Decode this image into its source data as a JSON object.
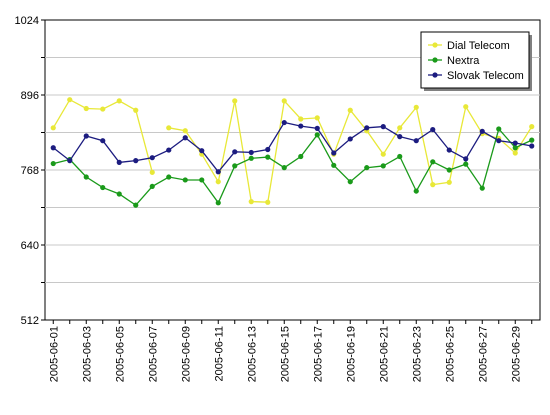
{
  "chart_data": {
    "type": "line",
    "title": "",
    "xlabel": "",
    "ylabel": "",
    "ylim": [
      512,
      1024
    ],
    "yticks": [
      512,
      640,
      768,
      896,
      1024
    ],
    "grid": true,
    "legend_position": "top-right",
    "x": [
      "2005-06-01",
      "2005-06-02",
      "2005-06-03",
      "2005-06-04",
      "2005-06-05",
      "2005-06-06",
      "2005-06-07",
      "2005-06-08",
      "2005-06-09",
      "2005-06-10",
      "2005-06-11",
      "2005-06-12",
      "2005-06-13",
      "2005-06-14",
      "2005-06-15",
      "2005-06-16",
      "2005-06-17",
      "2005-06-18",
      "2005-06-19",
      "2005-06-20",
      "2005-06-21",
      "2005-06-22",
      "2005-06-23",
      "2005-06-24",
      "2005-06-25",
      "2005-06-26",
      "2005-06-27",
      "2005-06-28",
      "2005-06-29",
      "2005-06-30"
    ],
    "xtick_labels": [
      "2005-06-01",
      "2005-06-03",
      "2005-06-05",
      "2005-06-07",
      "2005-06-09",
      "2005-06-11",
      "2005-06-13",
      "2005-06-15",
      "2005-06-17",
      "2005-06-19",
      "2005-06-21",
      "2005-06-23",
      "2005-06-25",
      "2005-06-27",
      "2005-06-29"
    ],
    "series": [
      {
        "name": "Dial Telecom",
        "color": "#e8e838",
        "segments": [
          {
            "start": 0,
            "values": [
              840,
              888,
              873,
              872,
              886,
              870,
              764
            ]
          },
          {
            "start": 7,
            "values": [
              840,
              835,
              795,
              748,
              886,
              714,
              713,
              886,
              855,
              857,
              795,
              870,
              835,
              795,
              840,
              875,
              743,
              747,
              876,
              830,
              822,
              797,
              842
            ]
          }
        ]
      },
      {
        "name": "Nextra",
        "color": "#1a9a1a",
        "segments": [
          {
            "start": 0,
            "values": [
              779,
              786,
              756,
              738,
              727,
              708,
              740,
              756,
              751,
              751,
              712,
              775,
              788,
              790,
              772,
              791,
              828,
              776,
              748,
              772,
              775,
              791,
              732,
              782,
              768,
              778,
              737,
              838,
              806,
              819
            ]
          }
        ]
      },
      {
        "name": "Slovak Telecom",
        "color": "#1c1c80",
        "segments": [
          {
            "start": 0,
            "values": [
              806,
              784,
              826,
              818,
              781,
              784,
              789,
              802,
              823,
              801,
              765,
              799,
              798,
              803,
              849,
              843,
              839,
              797,
              821,
              840,
              842,
              825,
              818,
              837,
              802,
              787,
              834,
              818,
              814,
              809
            ]
          }
        ]
      }
    ]
  }
}
